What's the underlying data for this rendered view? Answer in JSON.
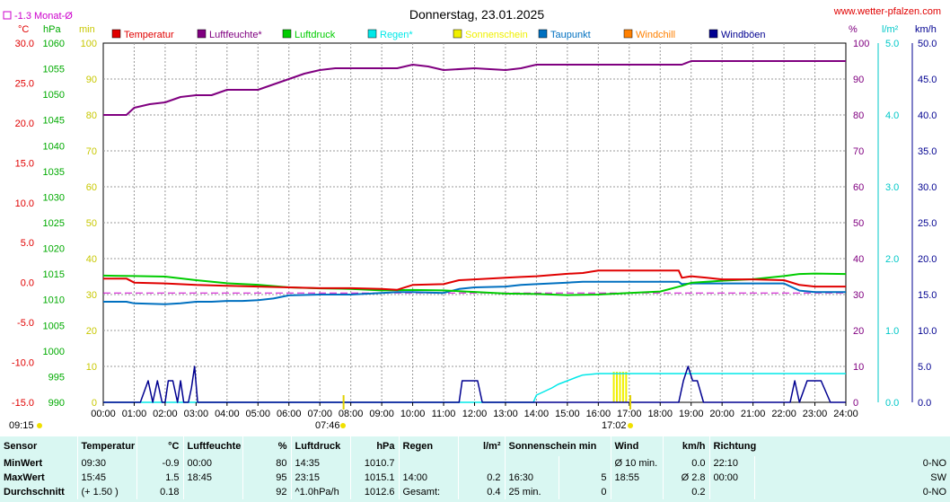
{
  "header": {
    "title": "Donnerstag, 23.01.2025",
    "site": "www.wetter-pfalzen.com",
    "monthly_avg": "-1.3 Monat-Ø",
    "start_time": "09:15",
    "sunrise": "07:46",
    "sunset": "17:02"
  },
  "units": {
    "temp": "°C",
    "pressure": "hPa",
    "minutes": "min",
    "percent": "%",
    "rain": "l/m²",
    "wind": "km/h"
  },
  "colors": {
    "temperature": "#e00000",
    "humidity": "#800080",
    "pressure": "#00cc00",
    "rain": "#00e8e8",
    "sunshine": "#f0f000",
    "dewpoint": "#0070c0",
    "windchill": "#ff8000",
    "gusts": "#000090"
  },
  "legend": [
    {
      "label": "Temperatur",
      "color": "#e00000",
      "x": 125
    },
    {
      "label": "Luftfeuchte*",
      "color": "#800080",
      "x": 220
    },
    {
      "label": "Luftdruck",
      "color": "#00cc00",
      "x": 315
    },
    {
      "label": "Regen*",
      "color": "#00e8e8",
      "x": 410
    },
    {
      "label": "Sonnenschein",
      "color": "#f0f000",
      "x": 505
    },
    {
      "label": "Taupunkt",
      "color": "#0070c0",
      "x": 600
    },
    {
      "label": "Windchill",
      "color": "#ff8000",
      "x": 695
    },
    {
      "label": "Windböen",
      "color": "#000090",
      "x": 790
    }
  ],
  "chart_data": {
    "type": "line",
    "x_range": [
      0,
      24
    ],
    "x_ticks": [
      "00:00",
      "01:00",
      "02:00",
      "03:00",
      "04:00",
      "05:00",
      "06:00",
      "07:00",
      "08:00",
      "09:00",
      "10:00",
      "11:00",
      "12:00",
      "13:00",
      "14:00",
      "15:00",
      "16:00",
      "17:00",
      "18:00",
      "19:00",
      "20:00",
      "21:00",
      "22:00",
      "23:00",
      "24:00"
    ],
    "axes": {
      "temp": {
        "min": -15,
        "max": 30,
        "ticks": [
          "30.0",
          "25.0",
          "20.0",
          "15.0",
          "10.0",
          "5.0",
          "0.0",
          "-5.0",
          "-10.0",
          "-15.0"
        ],
        "tick_values": [
          30,
          25,
          20,
          15,
          10,
          5,
          0,
          -5,
          -10,
          -15
        ]
      },
      "pressure": {
        "min": 990,
        "max": 1060,
        "ticks": [
          "1060",
          "1055",
          "1050",
          "1045",
          "1040",
          "1035",
          "1030",
          "1025",
          "1020",
          "1015",
          "1010",
          "1005",
          "1000",
          "995",
          "990"
        ],
        "tick_values": [
          1060,
          1055,
          1050,
          1045,
          1040,
          1035,
          1030,
          1025,
          1020,
          1015,
          1010,
          1005,
          1000,
          995,
          990
        ]
      },
      "minutes": {
        "min": 0,
        "max": 100,
        "ticks": [
          "100",
          "90",
          "80",
          "70",
          "60",
          "50",
          "40",
          "30",
          "20",
          "10",
          "0"
        ],
        "tick_values": [
          100,
          90,
          80,
          70,
          60,
          50,
          40,
          30,
          20,
          10,
          0
        ]
      },
      "humidity": {
        "min": 0,
        "max": 100,
        "ticks": [
          "100",
          "90",
          "80",
          "70",
          "60",
          "50",
          "40",
          "30",
          "20",
          "10",
          "0"
        ],
        "tick_values": [
          100,
          90,
          80,
          70,
          60,
          50,
          40,
          30,
          20,
          10,
          0
        ]
      },
      "rain": {
        "min": 0,
        "max": 5,
        "ticks": [
          "5.0",
          "4.0",
          "3.0",
          "2.0",
          "1.0",
          "0.0"
        ],
        "tick_values": [
          5,
          4,
          3,
          2,
          1,
          0
        ]
      },
      "wind": {
        "min": 0,
        "max": 50,
        "ticks": [
          "50.0",
          "45.0",
          "40.0",
          "35.0",
          "30.0",
          "25.0",
          "20.0",
          "15.0",
          "10.0",
          "5.0",
          "0.0"
        ],
        "tick_values": [
          50,
          45,
          40,
          35,
          30,
          25,
          20,
          15,
          10,
          5,
          0
        ]
      }
    },
    "monthly_avg_temp": -1.3,
    "series": [
      {
        "name": "Temperatur",
        "axis": "temp",
        "color": "#e00000",
        "x": [
          0,
          0.75,
          1,
          2,
          3,
          4,
          5,
          6,
          7,
          8,
          9,
          9.5,
          10,
          11,
          11.5,
          12,
          13,
          13.5,
          14,
          15,
          15.5,
          16,
          17,
          18,
          18.6,
          18.7,
          19,
          19.5,
          20,
          21,
          22,
          22.5,
          23,
          24
        ],
        "y": [
          0.5,
          0.5,
          0,
          -0.1,
          -0.3,
          -0.4,
          -0.5,
          -0.6,
          -0.7,
          -0.7,
          -0.8,
          -0.9,
          -0.3,
          -0.2,
          0.3,
          0.4,
          0.6,
          0.7,
          0.8,
          1.1,
          1.2,
          1.5,
          1.5,
          1.5,
          1.5,
          0.6,
          0.8,
          0.6,
          0.4,
          0.4,
          0.3,
          -0.3,
          -0.5,
          -0.5
        ]
      },
      {
        "name": "Luftfeuchte*",
        "axis": "humidity",
        "color": "#800080",
        "x": [
          0,
          0.75,
          1,
          1.5,
          2,
          2.5,
          3,
          3.5,
          4,
          5,
          5.5,
          6,
          6.5,
          7,
          7.5,
          8,
          9,
          9.5,
          10,
          10.5,
          11,
          12,
          13,
          13.5,
          14,
          15,
          16,
          17,
          18,
          18.7,
          19,
          20,
          21,
          22,
          23,
          24
        ],
        "y": [
          80,
          80,
          82,
          83,
          83.5,
          85,
          85.5,
          85.5,
          87,
          87,
          88.5,
          90,
          91.5,
          92.5,
          93,
          93,
          93,
          93,
          94,
          93.5,
          92.5,
          93,
          92.5,
          93,
          94,
          94,
          94,
          94,
          94,
          94,
          95,
          95,
          95,
          95,
          95,
          95
        ]
      },
      {
        "name": "Luftdruck",
        "axis": "pressure",
        "color": "#00cc00",
        "x": [
          0,
          1,
          2,
          3,
          4,
          5,
          6,
          7,
          8,
          9,
          10,
          11,
          12,
          13,
          14,
          15,
          16,
          17,
          18,
          18.7,
          19,
          20,
          21,
          22,
          22.5,
          23,
          24
        ],
        "y": [
          1014.7,
          1014.6,
          1014.5,
          1013.8,
          1013.2,
          1012.9,
          1012.4,
          1012.2,
          1012.1,
          1011.8,
          1011.9,
          1011.8,
          1011.5,
          1011.2,
          1011.1,
          1010.9,
          1011.0,
          1011.3,
          1011.6,
          1012.7,
          1013.3,
          1013.7,
          1014.0,
          1014.6,
          1015.0,
          1015.1,
          1015.0
        ]
      },
      {
        "name": "Regen*",
        "axis": "rain",
        "color": "#00e8e8",
        "x": [
          0,
          13.9,
          14,
          14.5,
          14.7,
          15,
          15.3,
          15.5,
          16,
          17,
          18,
          19,
          20,
          21,
          22,
          23,
          24
        ],
        "y": [
          0,
          0,
          0.1,
          0.2,
          0.25,
          0.3,
          0.35,
          0.38,
          0.4,
          0.4,
          0.4,
          0.4,
          0.4,
          0.4,
          0.4,
          0.4,
          0.4
        ]
      },
      {
        "name": "Sonnenschein",
        "axis": "minutes",
        "color": "#f0f000",
        "x": [
          16.5,
          16.6,
          16.7,
          16.8,
          16.9
        ],
        "y": [
          5,
          5,
          5,
          5,
          5
        ]
      },
      {
        "name": "Taupunkt",
        "axis": "temp",
        "color": "#0070c0",
        "x": [
          0,
          0.75,
          1,
          2,
          2.5,
          3,
          3.5,
          4,
          4.5,
          5,
          5.5,
          6,
          7,
          8,
          9,
          9.5,
          10,
          11,
          11.5,
          12,
          13,
          13.5,
          14,
          15,
          15.5,
          16,
          17,
          18,
          18.6,
          18.7,
          19,
          20,
          21,
          22,
          22.5,
          23,
          24
        ],
        "y": [
          -2.4,
          -2.4,
          -2.6,
          -2.7,
          -2.6,
          -2.4,
          -2.4,
          -2.3,
          -2.3,
          -2.2,
          -2.0,
          -1.6,
          -1.5,
          -1.5,
          -1.3,
          -1.2,
          -1.2,
          -1.3,
          -0.8,
          -0.6,
          -0.5,
          -0.3,
          -0.2,
          0.0,
          0.1,
          0.1,
          0.1,
          0.1,
          0.1,
          -0.2,
          -0.1,
          -0.1,
          -0.1,
          -0.1,
          -1.0,
          -1.2,
          -1.2
        ]
      },
      {
        "name": "Windböen",
        "axis": "wind",
        "color": "#000090",
        "x": [
          0,
          1.0,
          1.2,
          1.45,
          1.6,
          1.75,
          1.9,
          2.0,
          2.1,
          2.25,
          2.4,
          2.5,
          2.6,
          2.75,
          2.85,
          2.95,
          3.05,
          3.15,
          3.3,
          11.5,
          11.6,
          12.1,
          12.25,
          18.6,
          18.75,
          18.9,
          19.05,
          19.2,
          19.4,
          22.2,
          22.35,
          22.5,
          22.75,
          22.9,
          23.2,
          23.5,
          24
        ],
        "y": [
          0,
          0,
          0,
          3,
          0,
          3,
          0,
          0,
          3,
          3,
          0,
          3,
          0,
          0,
          2,
          5,
          0,
          0,
          0,
          0,
          3,
          3,
          0,
          0,
          3,
          5,
          3,
          3,
          0,
          0,
          3,
          0,
          3,
          3,
          3,
          0,
          0
        ]
      }
    ]
  },
  "stats": {
    "headers": [
      "Sensor",
      "Temperatur",
      "°C",
      "Luftfeuchte",
      "%",
      "Luftdruck",
      "hPa",
      "Regen",
      "l/m²",
      "Sonnenschein min",
      "Wind",
      "km/h",
      "Richtung"
    ],
    "rows": [
      {
        "label": "MinWert",
        "cells": [
          "09:30",
          "-0.9",
          "00:00",
          "80",
          "14:35",
          "1010.7",
          "",
          "",
          "",
          "",
          "Ø 10 min.",
          "0.0",
          "22:10",
          "0-NO"
        ]
      },
      {
        "label": "MaxWert",
        "cells": [
          "15:45",
          "1.5",
          "18:45",
          "95",
          "23:15",
          "1015.1",
          "14:00",
          "0.2",
          "16:30",
          "5",
          "18:55",
          "Ø 2.8",
          "00:00",
          "SW"
        ]
      },
      {
        "label": "Durchschnitt",
        "cells": [
          "(+ 1.50 )",
          "0.18",
          "",
          "92",
          "^1.0hPa/h",
          "1012.6",
          "Gesamt:",
          "0.4",
          "25 min.",
          "0",
          "",
          "0.2",
          "",
          "0-NO"
        ]
      }
    ]
  }
}
